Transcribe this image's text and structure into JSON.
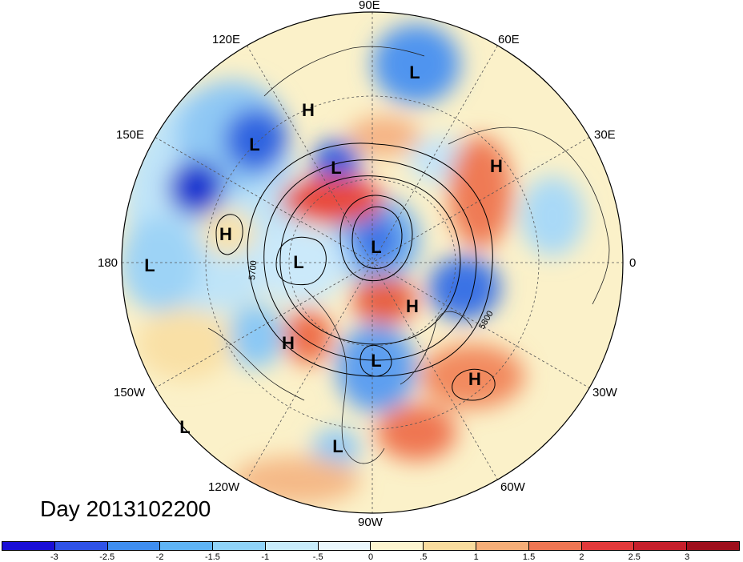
{
  "title": "Day 2013102200",
  "longitude_labels": {
    "90E": "90E",
    "60E": "60E",
    "120E": "120E",
    "150E": "150E",
    "30E": "30E",
    "180": "180",
    "0": "0",
    "150W": "150W",
    "30W": "30W",
    "120W": "120W",
    "60W": "60W",
    "90W": "90W"
  },
  "contour_labels": [
    "5700",
    "5800"
  ],
  "pressure_centers": [
    {
      "label": "L"
    },
    {
      "label": "H"
    },
    {
      "label": "L"
    },
    {
      "label": "L"
    },
    {
      "label": "H"
    },
    {
      "label": "H"
    },
    {
      "label": "L"
    },
    {
      "label": "L"
    },
    {
      "label": "L"
    },
    {
      "label": "H"
    },
    {
      "label": "H"
    },
    {
      "label": "L"
    },
    {
      "label": "H"
    },
    {
      "label": "L"
    },
    {
      "label": "L"
    }
  ],
  "colorbar": {
    "tick_labels": [
      "-3",
      "-2.5",
      "-2",
      "-1.5",
      "-1",
      "-.5",
      "0",
      ".5",
      "1",
      "1.5",
      "2",
      "2.5",
      "3"
    ],
    "colors": [
      "#1a0fd6",
      "#2f53e8",
      "#3f8ef0",
      "#5fb4f5",
      "#8fd3f8",
      "#c8ecfb",
      "#eaf7fd",
      "#fdf5d0",
      "#f9dc9e",
      "#f6ae78",
      "#ee7653",
      "#e2393a",
      "#c61f2b",
      "#9e0f1c"
    ]
  }
}
